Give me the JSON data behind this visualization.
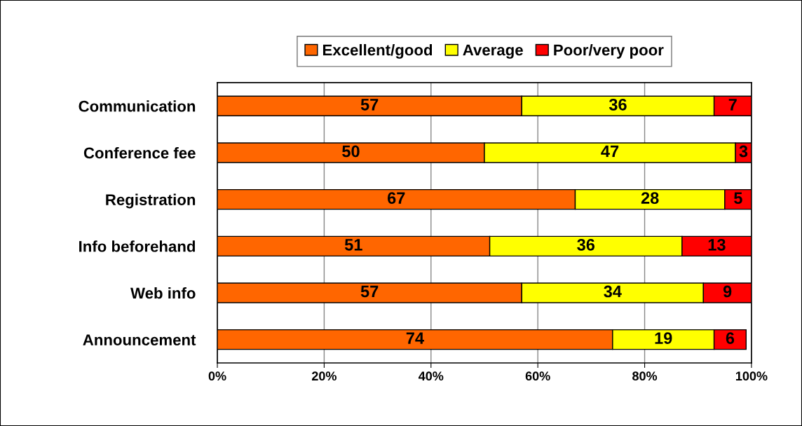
{
  "chart_data": {
    "type": "bar",
    "orientation": "horizontal",
    "stacked": true,
    "categories": [
      "Communication",
      "Conference fee",
      "Registration",
      "Info beforehand",
      "Web info",
      "Announcement"
    ],
    "series": [
      {
        "name": "Excellent/good",
        "color": "#ff6600",
        "values": [
          57,
          50,
          67,
          51,
          57,
          74
        ]
      },
      {
        "name": "Average",
        "color": "#ffff00",
        "values": [
          36,
          47,
          28,
          36,
          34,
          19
        ]
      },
      {
        "name": "Poor/very poor",
        "color": "#ff0000",
        "values": [
          7,
          3,
          5,
          13,
          9,
          6
        ]
      }
    ],
    "xlim": [
      0,
      100
    ],
    "xticks": [
      {
        "value": 0,
        "label": "0%"
      },
      {
        "value": 20,
        "label": "20%"
      },
      {
        "value": 40,
        "label": "40%"
      },
      {
        "value": 60,
        "label": "60%"
      },
      {
        "value": 80,
        "label": "80%"
      },
      {
        "value": 100,
        "label": "100%"
      }
    ],
    "grid": "x",
    "legend": "top",
    "data_labels": true
  }
}
